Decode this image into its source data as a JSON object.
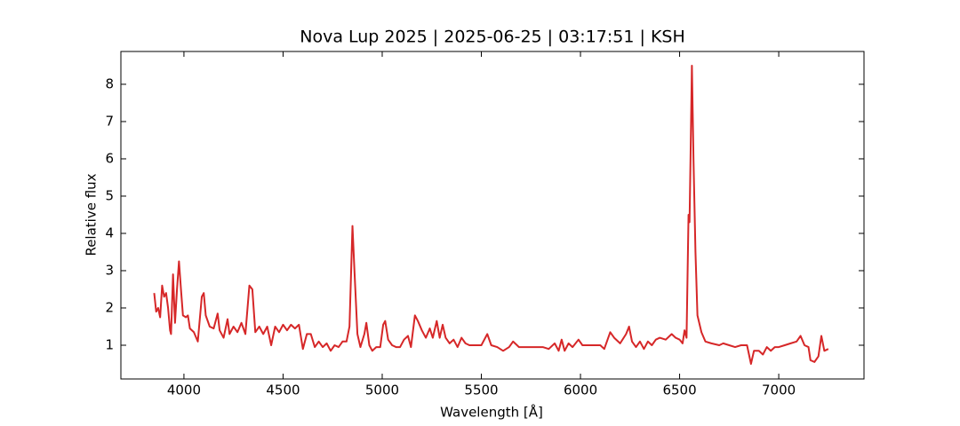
{
  "chart_data": {
    "type": "line",
    "title": "Nova Lup 2025 | 2025-06-25 | 03:17:51 | KSH",
    "xlabel": "Wavelength [Å]",
    "ylabel": "Relative flux",
    "x": [
      3850,
      3860,
      3870,
      3880,
      3890,
      3900,
      3910,
      3920,
      3930,
      3935,
      3945,
      3955,
      3965,
      3975,
      3985,
      3995,
      4010,
      4020,
      4030,
      4050,
      4070,
      4090,
      4100,
      4110,
      4130,
      4150,
      4170,
      4180,
      4200,
      4220,
      4230,
      4250,
      4270,
      4290,
      4310,
      4330,
      4345,
      4360,
      4380,
      4400,
      4420,
      4440,
      4460,
      4480,
      4500,
      4520,
      4540,
      4560,
      4580,
      4600,
      4620,
      4640,
      4660,
      4680,
      4700,
      4720,
      4740,
      4760,
      4780,
      4800,
      4820,
      4835,
      4850,
      4860,
      4875,
      4890,
      4910,
      4920,
      4935,
      4950,
      4970,
      4990,
      5005,
      5015,
      5030,
      5050,
      5070,
      5090,
      5110,
      5130,
      5145,
      5165,
      5180,
      5200,
      5220,
      5240,
      5255,
      5275,
      5290,
      5305,
      5320,
      5340,
      5360,
      5380,
      5400,
      5420,
      5440,
      5470,
      5500,
      5530,
      5550,
      5580,
      5610,
      5640,
      5660,
      5690,
      5720,
      5750,
      5780,
      5810,
      5840,
      5870,
      5890,
      5905,
      5920,
      5940,
      5960,
      5990,
      6010,
      6040,
      6070,
      6100,
      6120,
      6150,
      6170,
      6200,
      6230,
      6245,
      6260,
      6280,
      6300,
      6320,
      6340,
      6360,
      6380,
      6400,
      6430,
      6460,
      6480,
      6500,
      6515,
      6525,
      6535,
      6545,
      6550,
      6555,
      6562,
      6570,
      6580,
      6590,
      6610,
      6630,
      6660,
      6700,
      6720,
      6750,
      6780,
      6810,
      6840,
      6860,
      6875,
      6900,
      6920,
      6940,
      6960,
      6980,
      7000,
      7030,
      7060,
      7090,
      7110,
      7130,
      7150,
      7160,
      7180,
      7200,
      7215,
      7230,
      7250
    ],
    "series": [
      {
        "name": "Relative flux",
        "color": "#d62728",
        "values": [
          2.4,
          1.9,
          2.0,
          1.75,
          2.6,
          2.3,
          2.4,
          2.0,
          1.4,
          1.3,
          2.9,
          1.6,
          2.5,
          3.25,
          2.5,
          1.8,
          1.75,
          1.8,
          1.45,
          1.35,
          1.1,
          2.3,
          2.4,
          1.8,
          1.5,
          1.45,
          1.85,
          1.4,
          1.2,
          1.7,
          1.3,
          1.5,
          1.35,
          1.6,
          1.3,
          2.6,
          2.5,
          1.35,
          1.5,
          1.3,
          1.5,
          1.0,
          1.5,
          1.35,
          1.55,
          1.4,
          1.55,
          1.45,
          1.55,
          0.9,
          1.3,
          1.3,
          0.95,
          1.1,
          0.95,
          1.05,
          0.85,
          1.0,
          0.95,
          1.1,
          1.1,
          1.5,
          4.2,
          3.0,
          1.3,
          0.95,
          1.3,
          1.6,
          1.0,
          0.85,
          0.95,
          0.95,
          1.55,
          1.65,
          1.15,
          1.0,
          0.95,
          0.95,
          1.15,
          1.25,
          0.95,
          1.8,
          1.65,
          1.4,
          1.2,
          1.45,
          1.2,
          1.65,
          1.2,
          1.55,
          1.2,
          1.05,
          1.15,
          0.95,
          1.2,
          1.05,
          1.0,
          1.0,
          1.0,
          1.3,
          1.0,
          0.95,
          0.85,
          0.95,
          1.1,
          0.95,
          0.95,
          0.95,
          0.95,
          0.95,
          0.9,
          1.05,
          0.85,
          1.15,
          0.85,
          1.05,
          0.95,
          1.15,
          1.0,
          1.0,
          1.0,
          1.0,
          0.9,
          1.35,
          1.2,
          1.05,
          1.3,
          1.5,
          1.1,
          0.95,
          1.1,
          0.9,
          1.1,
          1.0,
          1.15,
          1.2,
          1.15,
          1.3,
          1.2,
          1.15,
          1.05,
          1.4,
          1.2,
          4.5,
          4.3,
          6.0,
          8.5,
          6.0,
          3.5,
          1.8,
          1.35,
          1.1,
          1.05,
          1.0,
          1.05,
          1.0,
          0.95,
          1.0,
          1.0,
          0.5,
          0.85,
          0.85,
          0.75,
          0.95,
          0.85,
          0.95,
          0.95,
          1.0,
          1.05,
          1.1,
          1.25,
          1.0,
          0.95,
          0.6,
          0.55,
          0.7,
          1.25,
          0.85,
          0.9
        ]
      }
    ],
    "xlim": [
      3682,
      7430
    ],
    "ylim": [
      0.095,
      8.88
    ],
    "xticks": [
      4000,
      4500,
      5000,
      5500,
      6000,
      6500,
      7000
    ],
    "yticks": [
      1,
      2,
      3,
      4,
      5,
      6,
      7,
      8
    ],
    "grid": false
  }
}
